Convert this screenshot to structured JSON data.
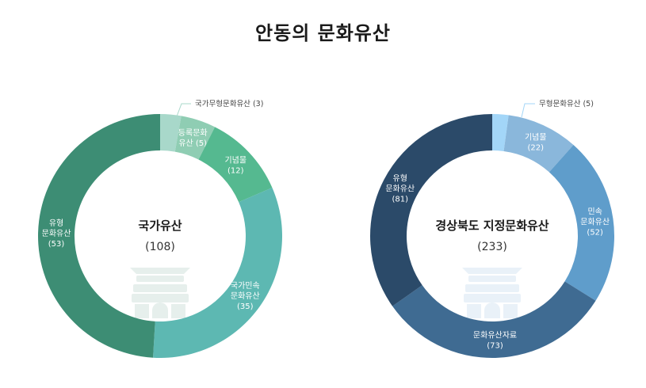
{
  "page": {
    "title": "안동의 문화유산"
  },
  "chart_data": [
    {
      "type": "pie",
      "center_title": "국가유산",
      "center_total": "(108)",
      "categories": [
        "국가무형문화유산",
        "등록문화유산",
        "기념물",
        "국가민속문화유산",
        "유형문화유산"
      ],
      "values": [
        3,
        5,
        12,
        35,
        53
      ],
      "colors": [
        "#a8d8ca",
        "#8fcdb3",
        "#55b990",
        "#5db8b2",
        "#3d8d74"
      ],
      "slice_labels": [
        [
          "국가무형문화유산 (3)"
        ],
        [
          "등록문화",
          "유산 (5)"
        ],
        [
          "기념물",
          "(12)"
        ],
        [
          "국가민속",
          "문화유산",
          "(35)"
        ],
        [
          "유형",
          "문화유산",
          "(53)"
        ]
      ],
      "icon_color": "#e6efec"
    },
    {
      "type": "pie",
      "center_title": "경상북도 지정문화유산",
      "center_total": "(233)",
      "categories": [
        "무형문화유산",
        "기념물",
        "민속문화유산",
        "문화유산자료",
        "유형문화유산"
      ],
      "values": [
        5,
        22,
        52,
        73,
        81
      ],
      "colors": [
        "#a3d6f8",
        "#8ab7db",
        "#5f9dcb",
        "#3f6b92",
        "#2b4a69"
      ],
      "slice_labels": [
        [
          "무형문화유산 (5)"
        ],
        [
          "기념물",
          "(22)"
        ],
        [
          "민속",
          "문화유산",
          "(52)"
        ],
        [
          "문화유산자료",
          "(73)"
        ],
        [
          "유형",
          "문화유산",
          "(81)"
        ]
      ],
      "icon_color": "#e9f1f8"
    }
  ]
}
